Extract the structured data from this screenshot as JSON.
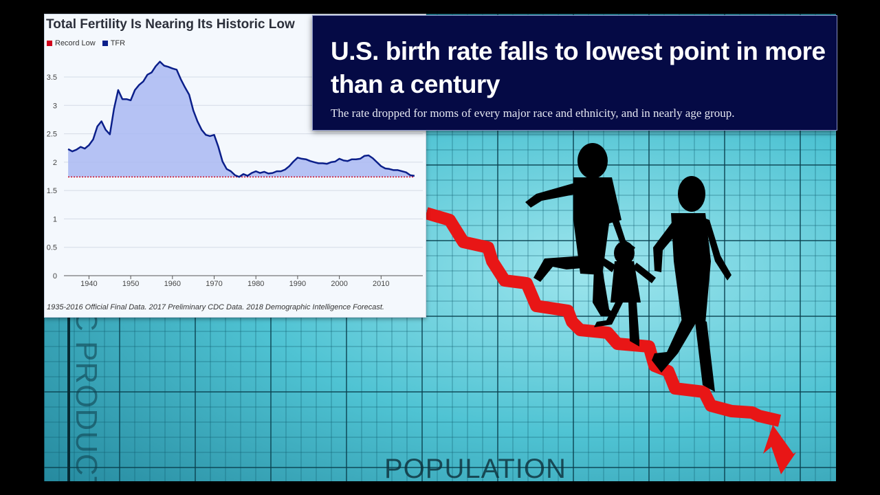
{
  "background": {
    "vertical_label": "C PRODUCT",
    "horizontal_label": "POPULATION",
    "arrow_color": "#e81616",
    "silhouette_color": "#000000"
  },
  "headline_card": {
    "headline": "U.S. birth rate falls to lowest point in more than a century",
    "subhead": "The rate dropped for moms of every major race and ethnicity, and in nearly age group.",
    "background_color": "#050a45"
  },
  "chart_data": {
    "type": "area",
    "title": "Total Fertility Is Nearing Its Historic Low",
    "footnote": "1935-2016 Official Final Data. 2017 Preliminary CDC Data. 2018 Demographic Intelligence Forecast.",
    "legend": [
      {
        "name": "Record Low",
        "color": "#d0021b"
      },
      {
        "name": "TFR",
        "color": "#0b1f8a"
      }
    ],
    "legend_position": "top-left",
    "xlabel": "",
    "ylabel": "",
    "x_ticks": [
      1940,
      1950,
      1960,
      1970,
      1980,
      1990,
      2000,
      2010
    ],
    "y_ticks": [
      0,
      0.5,
      1,
      1.5,
      2,
      2.5,
      3,
      3.5
    ],
    "y_tick_labels": [
      "0",
      "0.5",
      "1",
      "1.5",
      "2",
      "2.5",
      "3",
      "3.5"
    ],
    "xlim": [
      1934,
      2020
    ],
    "ylim": [
      0,
      3.9
    ],
    "grid": true,
    "record_low": 1.74,
    "series": [
      {
        "name": "TFR",
        "x": [
          1935,
          1936,
          1937,
          1938,
          1939,
          1940,
          1941,
          1942,
          1943,
          1944,
          1945,
          1946,
          1947,
          1948,
          1949,
          1950,
          1951,
          1952,
          1953,
          1954,
          1955,
          1956,
          1957,
          1958,
          1959,
          1960,
          1961,
          1962,
          1963,
          1964,
          1965,
          1966,
          1967,
          1968,
          1969,
          1970,
          1971,
          1972,
          1973,
          1974,
          1975,
          1976,
          1977,
          1978,
          1979,
          1980,
          1981,
          1982,
          1983,
          1984,
          1985,
          1986,
          1987,
          1988,
          1989,
          1990,
          1991,
          1992,
          1993,
          1994,
          1995,
          1996,
          1997,
          1998,
          1999,
          2000,
          2001,
          2002,
          2003,
          2004,
          2005,
          2006,
          2007,
          2008,
          2009,
          2010,
          2011,
          2012,
          2013,
          2014,
          2015,
          2016,
          2017,
          2018
        ],
        "values": [
          2.23,
          2.19,
          2.22,
          2.27,
          2.24,
          2.3,
          2.4,
          2.63,
          2.72,
          2.57,
          2.49,
          2.94,
          3.27,
          3.11,
          3.11,
          3.09,
          3.27,
          3.36,
          3.42,
          3.54,
          3.58,
          3.69,
          3.77,
          3.7,
          3.68,
          3.65,
          3.63,
          3.46,
          3.32,
          3.19,
          2.91,
          2.72,
          2.57,
          2.48,
          2.46,
          2.48,
          2.27,
          2.01,
          1.88,
          1.84,
          1.77,
          1.74,
          1.79,
          1.76,
          1.81,
          1.84,
          1.81,
          1.83,
          1.8,
          1.81,
          1.84,
          1.84,
          1.87,
          1.93,
          2.01,
          2.08,
          2.06,
          2.05,
          2.02,
          2.0,
          1.98,
          1.98,
          1.97,
          2.0,
          2.01,
          2.06,
          2.03,
          2.02,
          2.05,
          2.05,
          2.06,
          2.11,
          2.12,
          2.07,
          2.0,
          1.93,
          1.89,
          1.88,
          1.86,
          1.86,
          1.84,
          1.82,
          1.77,
          1.76
        ]
      }
    ]
  }
}
